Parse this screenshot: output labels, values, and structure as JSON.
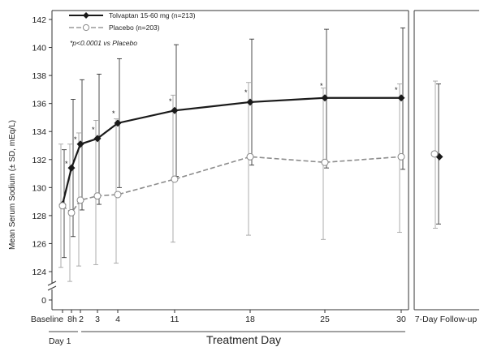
{
  "chart_data": {
    "type": "line",
    "title": "",
    "ylabel": "Mean Serum Sodium (± SD, mEq/L)",
    "xlabel": "Treatment Day",
    "day1_label": "Day 1",
    "note": "*p<0.0001 vs Placebo",
    "significance_marker": "*",
    "ylim": [
      124,
      142
    ],
    "y_axis_break": true,
    "y_ticks": [
      "0",
      "124",
      "126",
      "128",
      "130",
      "132",
      "134",
      "136",
      "138",
      "140",
      "142"
    ],
    "x_tick_labels": [
      "Baseline",
      "8h",
      "2",
      "3",
      "4",
      "11",
      "18",
      "25",
      "30",
      "7-Day Follow-up"
    ],
    "legend_position": "top-left",
    "series": [
      {
        "name": "Tolvaptan 15-60 mg (n=213)",
        "color": "#1a1a1a",
        "line_style": "solid",
        "marker": "filled-diamond",
        "points": [
          {
            "x": "Baseline",
            "y": 128.8,
            "sd_low": 125.0,
            "sd_high": 132.7
          },
          {
            "x": "8h",
            "y": 131.4,
            "sd_low": 126.5,
            "sd_high": 136.3
          },
          {
            "x": "2",
            "y": 133.1,
            "sd_low": 128.4,
            "sd_high": 137.7
          },
          {
            "x": "3",
            "y": 133.5,
            "sd_low": 128.8,
            "sd_high": 138.1
          },
          {
            "x": "4",
            "y": 134.6,
            "sd_low": 130.0,
            "sd_high": 139.2
          },
          {
            "x": "11",
            "y": 135.5,
            "sd_low": 130.8,
            "sd_high": 140.2
          },
          {
            "x": "18",
            "y": 136.1,
            "sd_low": 131.6,
            "sd_high": 140.6
          },
          {
            "x": "25",
            "y": 136.4,
            "sd_low": 131.4,
            "sd_high": 141.3
          },
          {
            "x": "30",
            "y": 136.4,
            "sd_low": 131.3,
            "sd_high": 141.4
          }
        ],
        "followup": {
          "x": "7-Day Follow-up",
          "y": 132.2,
          "sd_low": 127.4,
          "sd_high": 137.4
        },
        "significant_at": [
          "8h",
          "2",
          "3",
          "4",
          "11",
          "18",
          "25",
          "30"
        ]
      },
      {
        "name": "Placebo (n=203)",
        "color": "#8c8c8c",
        "line_style": "dashed",
        "marker": "open-circle",
        "points": [
          {
            "x": "Baseline",
            "y": 128.7,
            "sd_low": 124.3,
            "sd_high": 133.1
          },
          {
            "x": "8h",
            "y": 128.2,
            "sd_low": 123.3,
            "sd_high": 133.1
          },
          {
            "x": "2",
            "y": 129.1,
            "sd_low": 124.4,
            "sd_high": 133.9
          },
          {
            "x": "3",
            "y": 129.4,
            "sd_low": 124.5,
            "sd_high": 134.8
          },
          {
            "x": "4",
            "y": 129.5,
            "sd_low": 124.6,
            "sd_high": 134.9
          },
          {
            "x": "11",
            "y": 130.6,
            "sd_low": 126.1,
            "sd_high": 136.6
          },
          {
            "x": "18",
            "y": 132.2,
            "sd_low": 126.6,
            "sd_high": 137.5
          },
          {
            "x": "25",
            "y": 131.8,
            "sd_low": 126.3,
            "sd_high": 137.1
          },
          {
            "x": "30",
            "y": 132.2,
            "sd_low": 126.8,
            "sd_high": 137.4
          }
        ],
        "followup": {
          "x": "7-Day Follow-up",
          "y": 132.4,
          "sd_low": 127.1,
          "sd_high": 137.6
        }
      }
    ]
  }
}
